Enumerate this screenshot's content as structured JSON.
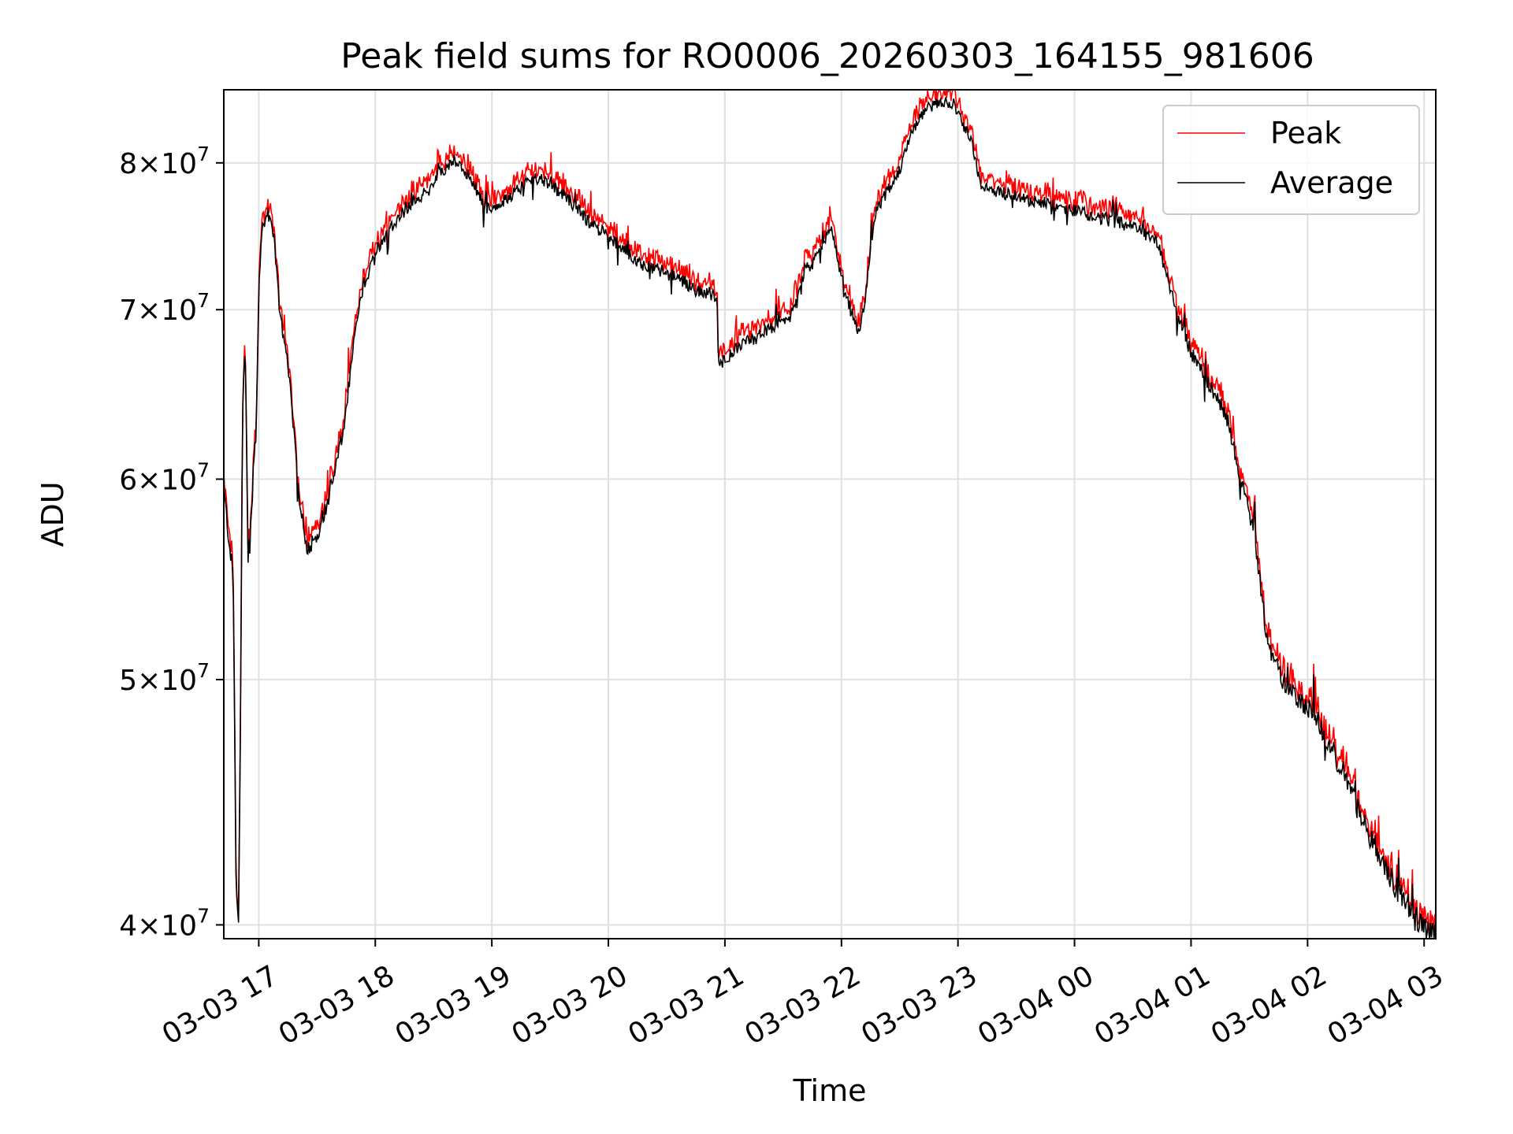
{
  "chart_data": {
    "type": "line",
    "title": "Peak field sums for RO0006_20260303_164155_981606",
    "xlabel": "Time",
    "ylabel": "ADU",
    "yscale": "log",
    "grid": true,
    "legend_position": "top-right",
    "xlim_hours": [
      16.7,
      27.1
    ],
    "ylim": [
      39500000,
      85500000
    ],
    "x_tick_labels": [
      "03-03 17",
      "03-03 18",
      "03-03 19",
      "03-03 20",
      "03-03 21",
      "03-03 22",
      "03-03 23",
      "03-04 00",
      "03-04 01",
      "03-04 02",
      "03-04 03"
    ],
    "x_tick_values_hours": [
      17,
      18,
      19,
      20,
      21,
      22,
      23,
      24,
      25,
      26,
      27
    ],
    "y_ticks": [
      {
        "value": 40000000,
        "mantissa": "4",
        "exp": "7"
      },
      {
        "value": 50000000,
        "mantissa": "5",
        "exp": "7"
      },
      {
        "value": 60000000,
        "mantissa": "6",
        "exp": "7"
      },
      {
        "value": 70000000,
        "mantissa": "7",
        "exp": "7"
      },
      {
        "value": 80000000,
        "mantissa": "8",
        "exp": "7"
      }
    ],
    "series": [
      {
        "name": "Peak",
        "color": "#ff0000"
      },
      {
        "name": "Average",
        "color": "#000000"
      }
    ],
    "average_anchors": [
      [
        16.7,
        59.5
      ],
      [
        16.75,
        57.0
      ],
      [
        16.8,
        55.0
      ],
      [
        16.83,
        42.0
      ],
      [
        16.86,
        40.0
      ],
      [
        16.88,
        48.0
      ],
      [
        16.9,
        63.0
      ],
      [
        16.93,
        68.0
      ],
      [
        16.96,
        56.0
      ],
      [
        17.0,
        58.0
      ],
      [
        17.02,
        61.0
      ],
      [
        17.05,
        62.5
      ],
      [
        17.08,
        72.0
      ],
      [
        17.12,
        75.5
      ],
      [
        17.18,
        76.5
      ],
      [
        17.25,
        74.0
      ],
      [
        17.3,
        70.0
      ],
      [
        17.4,
        66.0
      ],
      [
        17.5,
        59.5
      ],
      [
        17.6,
        56.3
      ],
      [
        17.7,
        57.0
      ],
      [
        17.8,
        58.5
      ],
      [
        17.9,
        60.5
      ],
      [
        18.0,
        63.0
      ],
      [
        18.1,
        68.0
      ],
      [
        18.2,
        71.5
      ],
      [
        18.35,
        74.0
      ],
      [
        18.5,
        75.5
      ],
      [
        18.7,
        77.0
      ],
      [
        18.9,
        78.0
      ],
      [
        19.05,
        79.5
      ],
      [
        19.2,
        80.0
      ],
      [
        19.35,
        79.0
      ],
      [
        19.5,
        77.0
      ],
      [
        19.6,
        76.5
      ],
      [
        19.75,
        77.5
      ],
      [
        19.95,
        78.5
      ],
      [
        20.1,
        79.0
      ],
      [
        20.2,
        78.5
      ],
      [
        20.4,
        77.5
      ],
      [
        20.6,
        76.0
      ],
      [
        20.8,
        75.0
      ],
      [
        21.0,
        74.0
      ],
      [
        21.2,
        73.0
      ],
      [
        21.4,
        72.5
      ],
      [
        21.6,
        72.0
      ],
      [
        21.8,
        71.3
      ],
      [
        21.95,
        71.0
      ],
      [
        22.0,
        71.0
      ],
      [
        22.03,
        66.5
      ],
      [
        22.1,
        67.0
      ],
      [
        22.3,
        67.8
      ],
      [
        22.5,
        68.5
      ],
      [
        22.7,
        69.0
      ],
      [
        22.85,
        70.0
      ],
      [
        22.95,
        72.5
      ],
      [
        23.05,
        73.0
      ],
      [
        23.15,
        74.5
      ],
      [
        23.25,
        75.5
      ],
      [
        23.3,
        73.5
      ],
      [
        23.4,
        71.0
      ],
      [
        23.5,
        69.0
      ],
      [
        23.55,
        68.5
      ],
      [
        23.6,
        70.5
      ],
      [
        23.7,
        76.0
      ],
      [
        23.8,
        77.5
      ],
      [
        23.95,
        79.0
      ],
      [
        24.1,
        82.0
      ],
      [
        24.25,
        84.0
      ],
      [
        24.4,
        84.5
      ],
      [
        24.55,
        84.5
      ],
      [
        24.65,
        83.0
      ],
      [
        24.75,
        81.5
      ],
      [
        24.85,
        78.5
      ],
      [
        25.0,
        78.0
      ],
      [
        25.3,
        77.5
      ],
      [
        25.6,
        77.0
      ],
      [
        25.9,
        76.5
      ],
      [
        26.2,
        76.0
      ],
      [
        26.5,
        75.5
      ],
      [
        26.75,
        74.5
      ],
      [
        26.95,
        70.0
      ],
      [
        27.1,
        67.5
      ],
      [
        27.3,
        65.5
      ],
      [
        27.5,
        63.5
      ],
      [
        27.65,
        60.0
      ],
      [
        27.8,
        57.0
      ],
      [
        27.9,
        53.0
      ],
      [
        27.95,
        51.5
      ],
      [
        28.1,
        50.0
      ],
      [
        28.3,
        49.0
      ],
      [
        28.45,
        48.5
      ],
      [
        28.6,
        47.0
      ],
      [
        28.75,
        46.0
      ],
      [
        28.9,
        44.5
      ],
      [
        29.1,
        43.0
      ],
      [
        29.3,
        41.5
      ],
      [
        29.5,
        40.5
      ],
      [
        29.65,
        39.8
      ],
      [
        29.75,
        39.6
      ]
    ],
    "_note": "average_anchors are [position, ADU in millions]; position is mapped onto the time axis by the script"
  }
}
